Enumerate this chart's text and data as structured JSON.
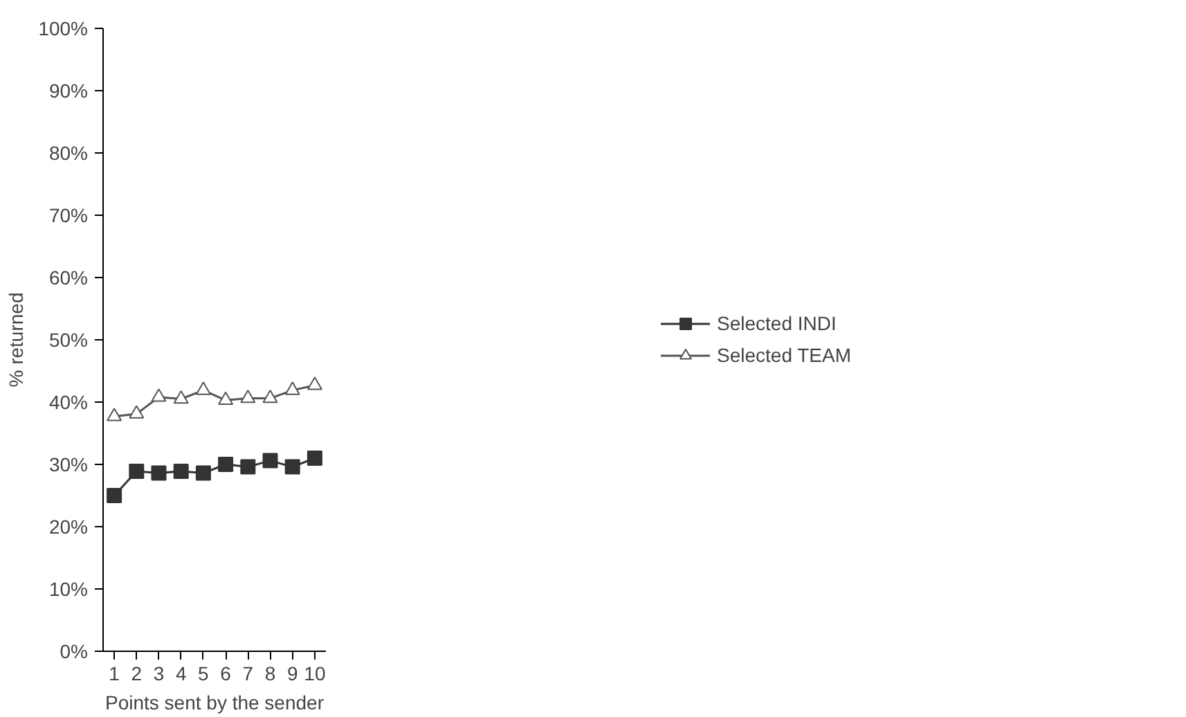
{
  "chart_data": {
    "type": "line",
    "xlabel": "Points sent by the sender",
    "ylabel": "% returned",
    "categories": [
      "1",
      "2",
      "3",
      "4",
      "5",
      "6",
      "7",
      "8",
      "9",
      "10"
    ],
    "series": [
      {
        "name": "Selected INDI",
        "color": "#333333",
        "marker": "square",
        "values": [
          25.0,
          28.9,
          28.6,
          28.9,
          28.6,
          30.0,
          29.6,
          30.6,
          29.6,
          31.0
        ]
      },
      {
        "name": "Selected TEAM",
        "color": "#555555",
        "marker": "triangle",
        "values": [
          37.7,
          38.1,
          40.8,
          40.5,
          41.9,
          40.3,
          40.6,
          40.6,
          41.9,
          42.7
        ]
      }
    ],
    "ylim": [
      0,
      100
    ],
    "yticks": [
      {
        "value": 0,
        "label": "0%"
      },
      {
        "value": 10,
        "label": "10%"
      },
      {
        "value": 20,
        "label": "20%"
      },
      {
        "value": 30,
        "label": "30%"
      },
      {
        "value": 40,
        "label": "40%"
      },
      {
        "value": 50,
        "label": "50%"
      },
      {
        "value": 60,
        "label": "60%"
      },
      {
        "value": 70,
        "label": "70%"
      },
      {
        "value": 80,
        "label": "80%"
      },
      {
        "value": 90,
        "label": "90%"
      },
      {
        "value": 100,
        "label": "100%"
      }
    ],
    "grid": false,
    "legend": "right",
    "line_style": "solid"
  }
}
